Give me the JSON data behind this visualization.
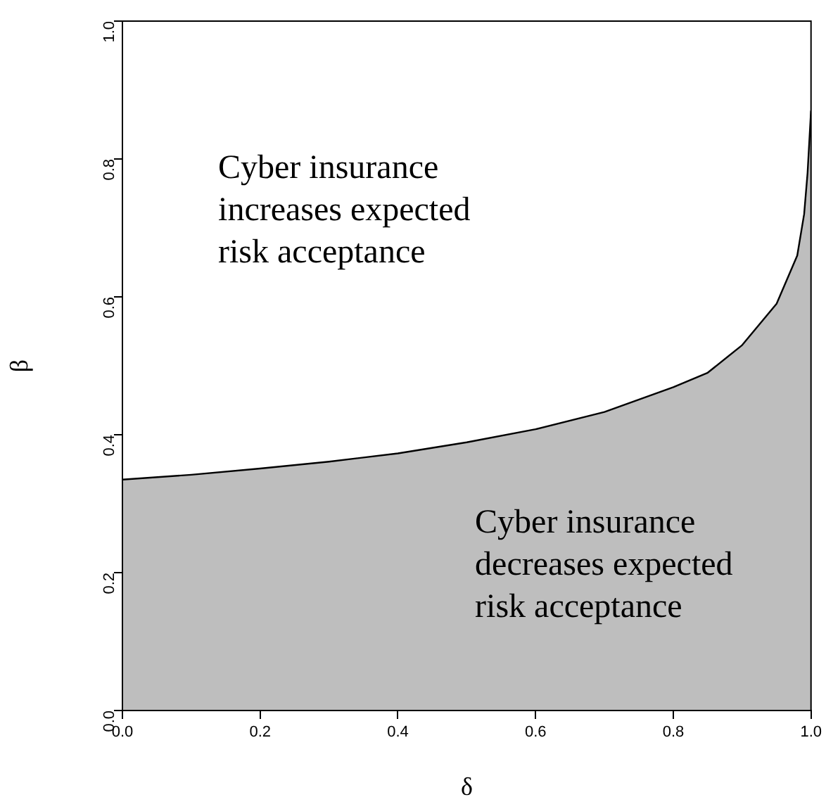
{
  "chart_data": {
    "type": "area",
    "xlabel": "δ",
    "ylabel": "β",
    "x": [
      0,
      0.1,
      0.2,
      0.3,
      0.4,
      0.5,
      0.6,
      0.7,
      0.8,
      0.85,
      0.9,
      0.95,
      0.98,
      0.99,
      0.995,
      1.0
    ],
    "series": [
      {
        "color": "#bebebe",
        "values": [
          0.335,
          0.342,
          0.351,
          0.361,
          0.373,
          0.389,
          0.408,
          0.433,
          0.469,
          0.49,
          0.53,
          0.59,
          0.66,
          0.72,
          0.78,
          0.87
        ]
      }
    ],
    "xlim": [
      0,
      1
    ],
    "ylim": [
      0,
      1
    ],
    "xticks": [
      {
        "value": 0,
        "label": "0.0"
      },
      0.2,
      0.4,
      0.6,
      0.8,
      {
        "value": 1,
        "label": "1.0"
      }
    ],
    "yticks": [
      {
        "value": 0,
        "label": "0.0"
      },
      0.2,
      0.4,
      0.6,
      0.8,
      {
        "value": 1,
        "label": "1.0"
      }
    ],
    "grid": false,
    "legend": false,
    "annotations": [
      "Cyber insurance\nincreases expected\nrisk acceptance",
      "Cyber insurance\ndecreases expected\nrisk acceptance"
    ]
  }
}
